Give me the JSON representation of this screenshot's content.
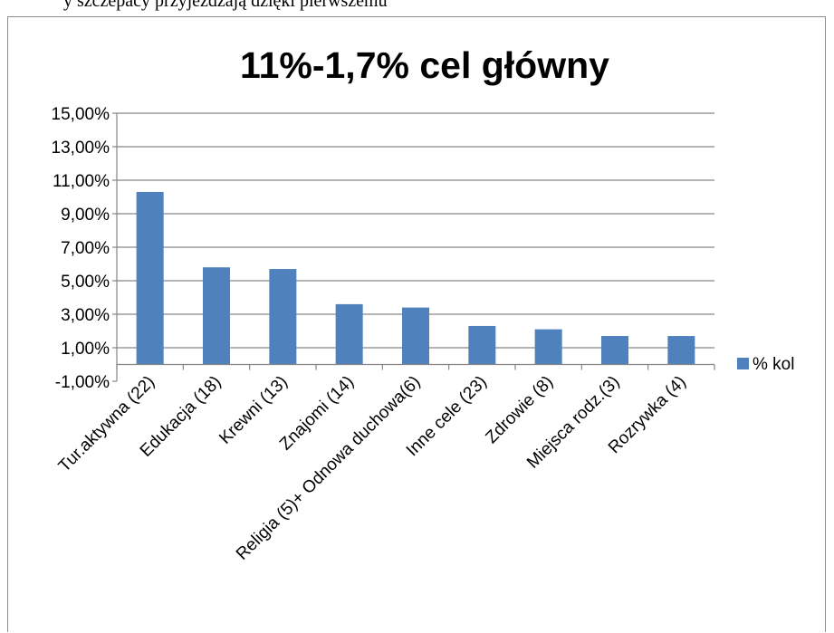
{
  "document": {
    "caption_fragment": "y szczepacy przyjeżdżają dzięki pierwszemu"
  },
  "chart_data": {
    "type": "bar",
    "title": "11%-1,7% cel główny",
    "xlabel": "",
    "ylabel": "",
    "ylim": [
      -0.01,
      0.15
    ],
    "yticks": [
      -0.01,
      0.01,
      0.03,
      0.05,
      0.07,
      0.09,
      0.11,
      0.13,
      0.15
    ],
    "ytick_labels": [
      "-1,00%",
      "1,00%",
      "3,00%",
      "5,00%",
      "7,00%",
      "9,00%",
      "11,00%",
      "13,00%",
      "15,00%"
    ],
    "categories": [
      "Tur.aktywna (22)",
      "Edukacja (18)",
      "Krewni (13)",
      "Znajomi (14)",
      "Religia (5)+ Odnowa duchowa(6)",
      "Inne cele (23)",
      "Zdrowie (8)",
      "Miejsca rodz.(3)",
      "Rozrywka (4)"
    ],
    "series": [
      {
        "name": "% kol",
        "color": "#4f81bd",
        "values": [
          0.103,
          0.058,
          0.057,
          0.036,
          0.034,
          0.023,
          0.021,
          0.017,
          0.017
        ]
      }
    ],
    "grid": true,
    "legend": "right"
  }
}
